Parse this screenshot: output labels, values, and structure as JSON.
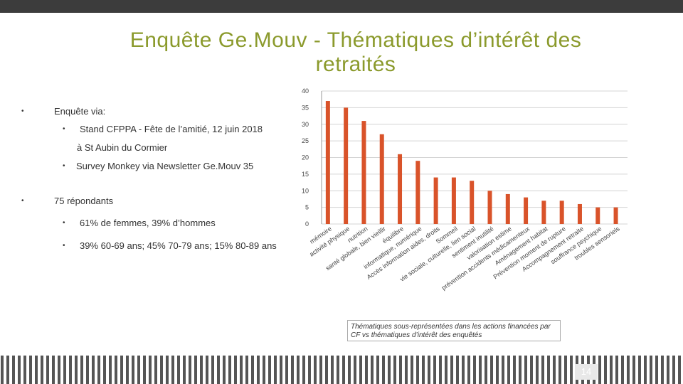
{
  "title": "Enquête Ge.Mouv - Thématiques d’intérêt des retraités",
  "bullets": [
    "Enquête via:",
    "Stand CFPPA - Fête de l’amitié, 12 juin 2018",
    "à St Aubin du Cormier",
    "Survey Monkey via Newsletter Ge.Mouv 35",
    "75 répondants",
    "61% de femmes, 39% d’hommes",
    "39% 60-69 ans; 45% 70-79 ans; 15% 80-89 ans"
  ],
  "caption": "Thématiques sous-représentées dans les actions financées par CF vs thématiques d’intérêt des enquêtés",
  "page_number": "14",
  "chart_data": {
    "type": "bar",
    "categories": [
      "mémoire",
      "activité physique",
      "nutrition",
      "santé globale, bien vieillir",
      "équilibre",
      "informatique, numérique",
      "Accès information aides, droits",
      "Sommeil",
      "vie sociale, culturelle, lien social",
      "sentiment inutilité",
      "valorisation estime",
      "prévention accidents médicamenteux",
      "Aménagement habitat",
      "Prévention moment de rupture",
      "Accompagnement retraite",
      "souffrance psychique",
      "troubles sensoriels"
    ],
    "values": [
      37,
      35,
      31,
      27,
      21,
      19,
      14,
      14,
      13,
      10,
      9,
      8,
      7,
      7,
      6,
      5,
      5
    ],
    "color": "#d9532a",
    "ylim": [
      0,
      40
    ],
    "yticks": [
      0,
      5,
      10,
      15,
      20,
      25,
      30,
      35,
      40
    ],
    "grid": true
  }
}
